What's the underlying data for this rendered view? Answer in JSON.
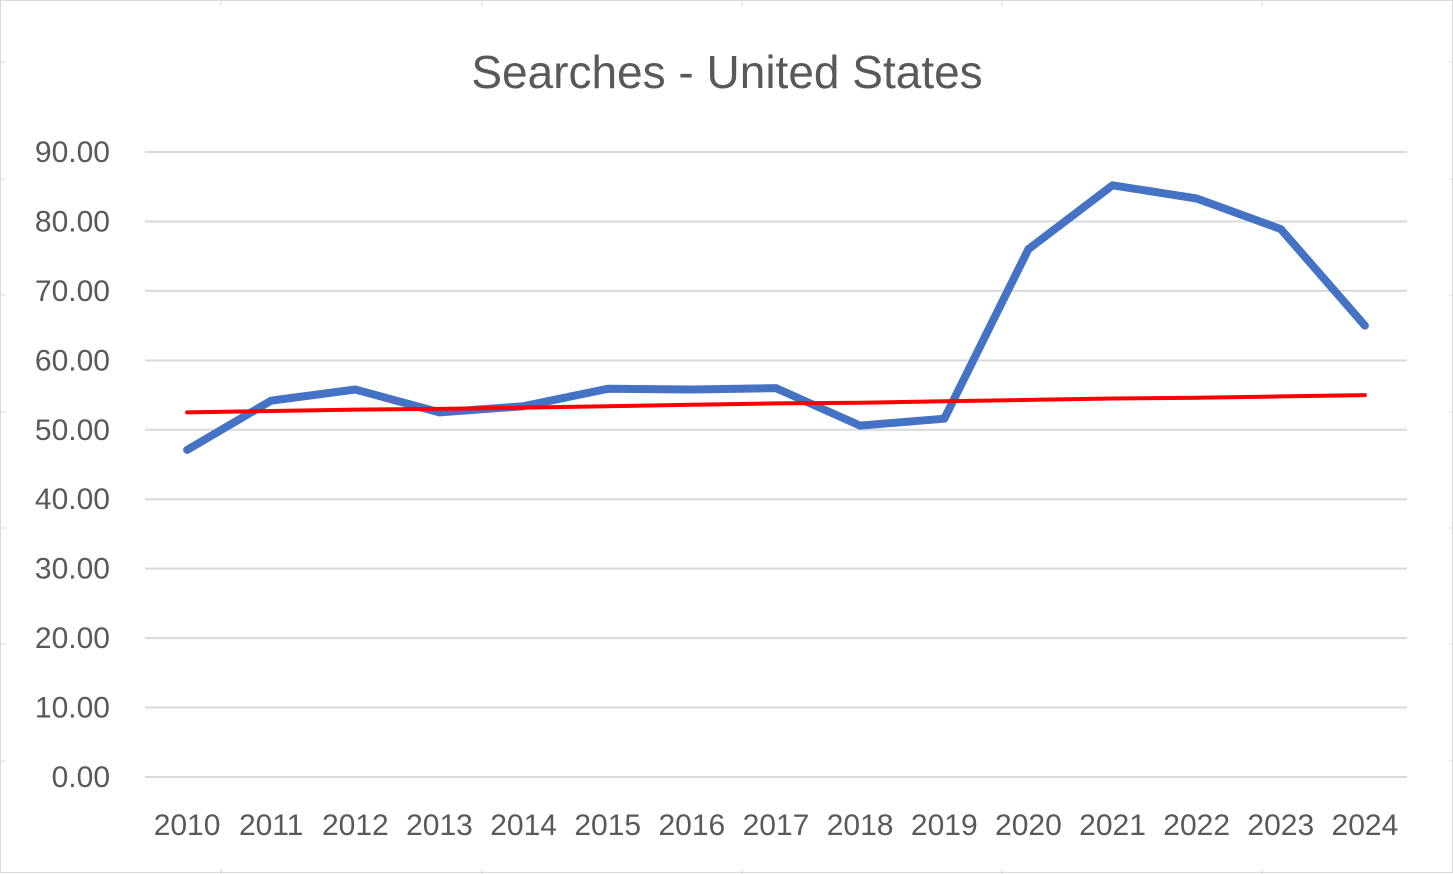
{
  "chart_data": {
    "type": "line",
    "title": "Searches - United States",
    "xlabel": "",
    "ylabel": "",
    "categories": [
      "2010",
      "2011",
      "2012",
      "2013",
      "2014",
      "2015",
      "2016",
      "2017",
      "2018",
      "2019",
      "2020",
      "2021",
      "2022",
      "2023",
      "2024"
    ],
    "ylim": [
      0,
      90
    ],
    "yticks": [
      0,
      10,
      20,
      30,
      40,
      50,
      60,
      70,
      80,
      90
    ],
    "ytick_labels": [
      "0.00",
      "10.00",
      "20.00",
      "30.00",
      "40.00",
      "50.00",
      "60.00",
      "70.00",
      "80.00",
      "90.00"
    ],
    "grid": true,
    "legend": "none",
    "series": [
      {
        "values": [
          47.1,
          54.2,
          55.8,
          52.5,
          53.4,
          55.9,
          55.8,
          56.0,
          50.6,
          51.6,
          76.0,
          85.2,
          83.3,
          78.9,
          65.0
        ],
        "color": "#4472C4"
      },
      {
        "trend": "linear",
        "values": [
          52.5,
          52.7,
          52.9,
          53.0,
          53.2,
          53.4,
          53.6,
          53.8,
          53.9,
          54.1,
          54.3,
          54.5,
          54.6,
          54.8,
          55.0
        ],
        "color": "#FF0000"
      }
    ]
  }
}
